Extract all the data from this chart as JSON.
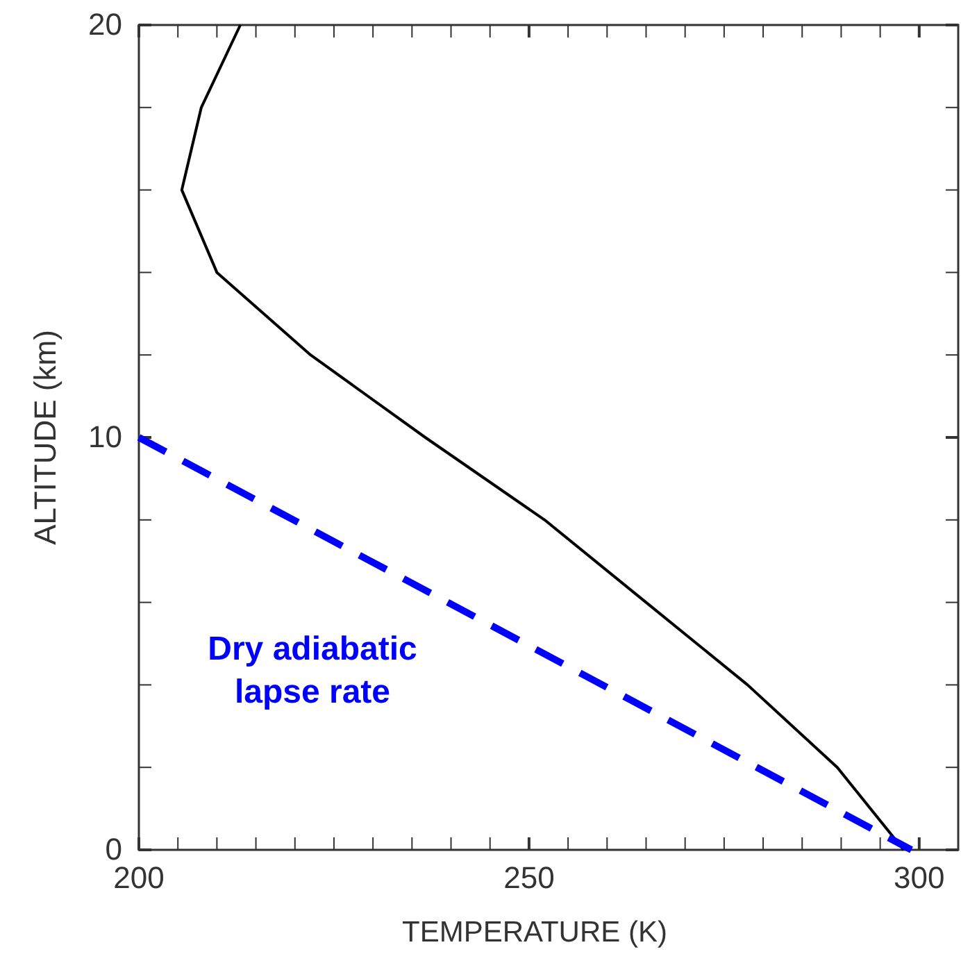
{
  "chart_data": {
    "type": "line",
    "xlabel": "TEMPERATURE (K)",
    "ylabel": "ALTITUDE (km)",
    "xlim": [
      200,
      305
    ],
    "ylim": [
      0,
      20
    ],
    "xticks": [
      200,
      {
        "value": 205,
        "label": null
      },
      {
        "value": 210,
        "label": null
      },
      {
        "value": 215,
        "label": null
      },
      {
        "value": 220,
        "label": null
      },
      {
        "value": 225,
        "label": null
      },
      {
        "value": 230,
        "label": null
      },
      {
        "value": 235,
        "label": null
      },
      {
        "value": 240,
        "label": null
      },
      {
        "value": 245,
        "label": null
      },
      250,
      {
        "value": 255,
        "label": null
      },
      {
        "value": 260,
        "label": null
      },
      {
        "value": 265,
        "label": null
      },
      {
        "value": 270,
        "label": null
      },
      {
        "value": 275,
        "label": null
      },
      {
        "value": 280,
        "label": null
      },
      {
        "value": 285,
        "label": null
      },
      {
        "value": 290,
        "label": null
      },
      {
        "value": 295,
        "label": null
      },
      300
    ],
    "yticks": [
      0,
      {
        "value": 2,
        "label": null
      },
      {
        "value": 4,
        "label": null
      },
      {
        "value": 6,
        "label": null
      },
      {
        "value": 8,
        "label": null
      },
      10,
      {
        "value": 12,
        "label": null
      },
      {
        "value": 14,
        "label": null
      },
      {
        "value": 16,
        "label": null
      },
      {
        "value": 18,
        "label": null
      },
      20
    ],
    "series": [
      {
        "color": "#000000",
        "line_style": "solid",
        "x": [
          298,
          289.5,
          278,
          265,
          252,
          236.7,
          222,
          210,
          205.5,
          208,
          213
        ],
        "values": [
          0,
          2,
          4,
          6,
          8,
          10,
          12,
          14,
          16,
          18,
          20
        ]
      },
      {
        "color": "#0000ff",
        "line_style": "dashed",
        "x": [
          200,
          299
        ],
        "values": [
          10,
          0
        ]
      }
    ],
    "annotations": [
      "Dry adiabatic\nlapse rate"
    ],
    "marker": "none",
    "grid": false
  }
}
